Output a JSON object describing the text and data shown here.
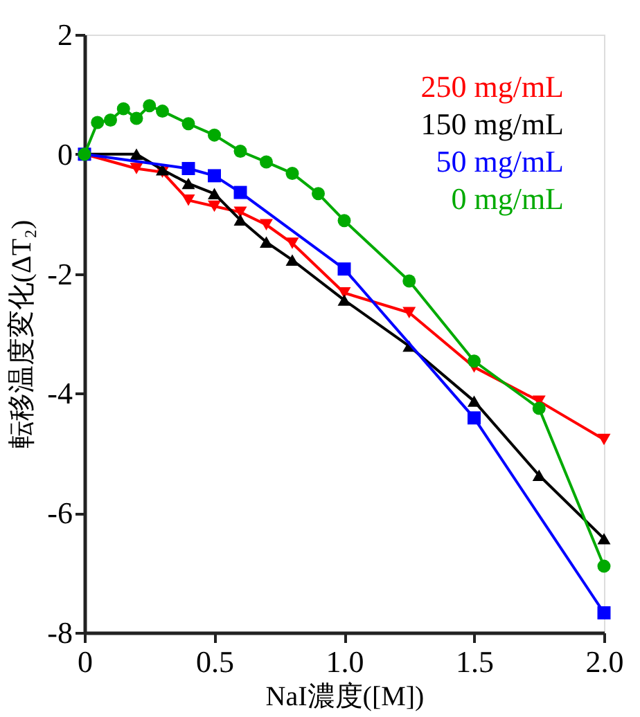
{
  "chart_data": {
    "type": "line",
    "xlabel": "NaI濃度([M])",
    "ylabel": "転移温度変化(ΔT₂)",
    "xlim": [
      0,
      2
    ],
    "xticks": [
      0,
      0.5,
      {
        "value": 1,
        "label": "1.0"
      },
      1.5,
      {
        "value": 2,
        "label": "2.0"
      }
    ],
    "ylim": [
      -8,
      2
    ],
    "yticks": [
      -8,
      -6,
      -4,
      -2,
      0,
      2
    ],
    "grid": false,
    "legend": "top right",
    "line_style": "solid",
    "series": [
      {
        "name": "250 mg/mL",
        "color": "#ff0000",
        "marker": "triangle_down",
        "x": [
          0,
          0.2,
          0.3,
          0.4,
          0.5,
          0.6,
          0.7,
          0.8,
          1.0,
          1.25,
          1.5,
          1.75,
          2.0
        ],
        "values": [
          0,
          -0.24,
          -0.3,
          -0.77,
          -0.87,
          -0.97,
          -1.18,
          -1.49,
          -2.32,
          -2.65,
          -3.56,
          -4.13,
          -4.77
        ]
      },
      {
        "name": "150 mg/mL",
        "color": "#000000",
        "marker": "triangle",
        "x": [
          0,
          0.2,
          0.3,
          0.4,
          0.5,
          0.6,
          0.7,
          0.8,
          1.0,
          1.25,
          1.5,
          1.75,
          2.0
        ],
        "values": [
          0,
          0,
          -0.26,
          -0.49,
          -0.66,
          -1.1,
          -1.47,
          -1.77,
          -2.44,
          -3.21,
          -4.13,
          -5.37,
          -6.43
        ]
      },
      {
        "name": "50 mg/mL",
        "color": "#0000ff",
        "marker": "square",
        "x": [
          0,
          0.4,
          0.5,
          0.6,
          1.0,
          1.5,
          2.0
        ],
        "values": [
          0,
          -0.24,
          -0.36,
          -0.64,
          -1.92,
          -4.41,
          -7.67
        ]
      },
      {
        "name": "0 mg/mL",
        "color": "#00aa00",
        "marker": "circle",
        "x": [
          0,
          0.05,
          0.1,
          0.15,
          0.2,
          0.25,
          0.3,
          0.4,
          0.5,
          0.6,
          0.7,
          0.8,
          0.9,
          1.0,
          1.25,
          1.5,
          1.75,
          2.0
        ],
        "values": [
          0,
          0.53,
          0.57,
          0.76,
          0.6,
          0.81,
          0.72,
          0.51,
          0.32,
          0.05,
          -0.13,
          -0.32,
          -0.66,
          -1.11,
          -2.12,
          -3.46,
          -4.25,
          -6.89
        ]
      }
    ]
  }
}
